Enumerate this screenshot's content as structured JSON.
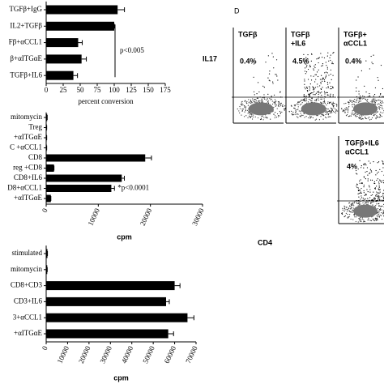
{
  "chart_data": [
    {
      "type": "bar",
      "orientation": "horizontal",
      "categories": [
        "TGFβ+IgG",
        "IL2+TGFβ",
        "Fβ+αCCL1",
        "β+αITGαE",
        "TGFβ+IL6"
      ],
      "values": [
        105,
        100,
        47,
        52,
        40
      ],
      "errors": [
        10,
        0,
        6,
        7,
        6
      ],
      "color": "#000000",
      "xlim": [
        0,
        175
      ],
      "xticks": [
        0,
        25,
        50,
        75,
        100,
        125,
        150,
        175
      ],
      "x_label": "percent conversion",
      "annotation": "p<0.005"
    },
    {
      "type": "bar",
      "orientation": "horizontal",
      "categories": [
        "mitomycin",
        "Treg",
        "+αITGαE",
        "C +αCCL1",
        "CD8",
        "reg +CD8",
        "CD8+IL6",
        "D8+αCCL1",
        "+αITGαE"
      ],
      "values": [
        200,
        100,
        100,
        100,
        19000,
        1500,
        14500,
        12500,
        900
      ],
      "errors": [
        0,
        0,
        0,
        0,
        1200,
        0,
        500,
        600,
        0
      ],
      "color": "#000000",
      "xlim": [
        0,
        30000
      ],
      "xticks": [
        0,
        10000,
        20000,
        30000
      ],
      "x_label": "cpm",
      "annotation": "*p<0.0001"
    },
    {
      "type": "bar",
      "orientation": "horizontal",
      "categories": [
        "stimulated",
        "mitomycin",
        "CD8+CD3",
        "CD3+IL6",
        "3+αCCL1",
        "+αITGαE"
      ],
      "values": [
        600,
        500,
        60000,
        56000,
        66000,
        57000
      ],
      "errors": [
        0,
        0,
        2500,
        1500,
        3000,
        2500
      ],
      "color": "#000000",
      "xlim": [
        0,
        70000
      ],
      "xticks": [
        0,
        10000,
        20000,
        30000,
        40000,
        50000,
        60000,
        70000
      ],
      "x_label": "cpm"
    }
  ],
  "panel_d": {
    "label": "D",
    "y_label": "IL17",
    "x_label": "CD4",
    "plots": [
      {
        "title": [
          "TGFβ"
        ],
        "percent": "0.4%"
      },
      {
        "title": [
          "TGFβ",
          "+IL6"
        ],
        "percent": "4.5%"
      },
      {
        "title": [
          "TGFβ+",
          "αCCL1"
        ],
        "percent": "0.4%"
      },
      {
        "title": [
          "TGFβ+IL6",
          "αCCL1"
        ],
        "percent": "4%"
      }
    ]
  }
}
